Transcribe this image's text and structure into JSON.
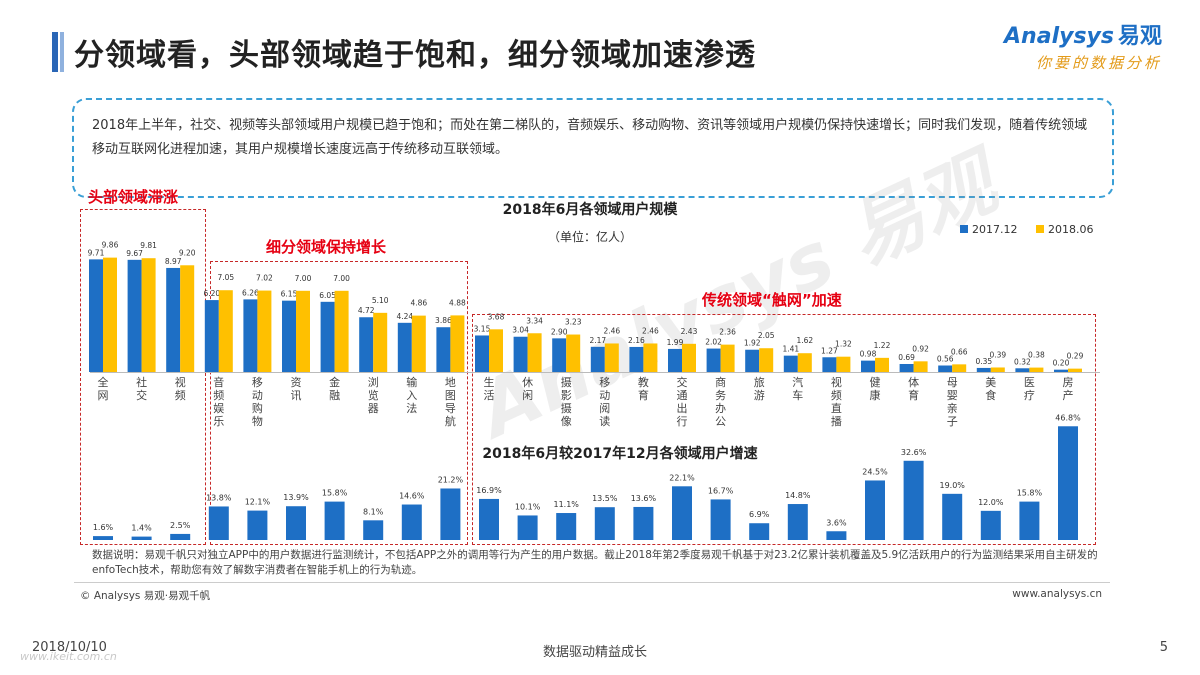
{
  "header": {
    "title": "分领域看，头部领域趋于饱和，细分领域加速渗透",
    "logo_en": "Analysys",
    "logo_cn": "易观",
    "logo_tagline": "你要的数据分析"
  },
  "summary": "2018年上半年，社交、视频等头部领域用户规模已趋于饱和；而处在第二梯队的，音频娱乐、移动购物、资讯等领域用户规模仍保持快速增长；同时我们发现，随着传统领域移动互联网化进程加速，其用户规模增长速度远高于传统移动互联领域。",
  "sections": {
    "head": "头部领域滞涨",
    "niche": "细分领域保持增长",
    "traditional": "传统领域“触网”加速"
  },
  "colors": {
    "series1": "#1e6fc5",
    "series2": "#ffc000",
    "accent": "#e60012"
  },
  "chart_data": [
    {
      "type": "bar",
      "title": "2018年6月各领域用户规模",
      "subtitle": "（单位：亿人）",
      "legend_position": "top-right",
      "categories": [
        "全网",
        "社交",
        "视频",
        "音频娱乐",
        "移动购物",
        "资讯",
        "金融",
        "浏览器",
        "输入法",
        "地图导航",
        "生活",
        "休闲",
        "摄影摄像",
        "移动阅读",
        "教育",
        "交通出行",
        "商务办公",
        "旅游",
        "汽车",
        "视频直播",
        "健康",
        "体育",
        "母婴亲子",
        "美食",
        "医疗",
        "房产"
      ],
      "series": [
        {
          "name": "2017.12",
          "values": [
            9.71,
            9.67,
            8.97,
            6.2,
            6.26,
            6.15,
            6.05,
            4.72,
            4.24,
            3.86,
            3.15,
            3.04,
            2.9,
            2.17,
            2.16,
            1.99,
            2.02,
            1.92,
            1.41,
            1.27,
            0.98,
            0.69,
            0.56,
            0.35,
            0.32,
            0.2
          ]
        },
        {
          "name": "2018.06",
          "values": [
            9.86,
            9.81,
            9.2,
            7.05,
            7.02,
            7.0,
            7.0,
            5.1,
            4.86,
            4.88,
            3.68,
            3.34,
            3.23,
            2.46,
            2.46,
            2.43,
            2.36,
            2.05,
            1.62,
            1.32,
            1.22,
            0.92,
            0.66,
            0.39,
            0.38,
            0.29
          ]
        }
      ],
      "value_labels": {
        "2017.12": [
          "9.71",
          "9.67",
          "8.97",
          "6.20",
          "6.26",
          "6.15",
          "6.05",
          "4.72",
          "4.24",
          "3.86",
          "3.15",
          "3.04",
          "2.90",
          "2.17",
          "2.16",
          "1.99",
          "2.02",
          "1.92",
          "1.41",
          "1.27",
          "0.98",
          "0.69",
          "0.56",
          "0.35",
          "0.32",
          "0.20"
        ],
        "2018.06": [
          "9.86",
          "9.81",
          "9.20",
          "7.05",
          "7.02",
          "7.00",
          "7.00",
          "5.10",
          "4.86",
          "4.88",
          "3.68",
          "3.34",
          "3.23",
          "2.46",
          "2.46",
          "2.43",
          "2.36",
          "2.05",
          "1.62",
          "1.32",
          "1.22",
          "0.92",
          "0.66",
          "0.39",
          "0.38",
          "0.29"
        ]
      },
      "ylim": [
        0,
        10
      ]
    },
    {
      "type": "bar",
      "title": "2018年6月较2017年12月各领域用户增速",
      "categories": [
        "全网",
        "社交",
        "视频",
        "音频娱乐",
        "移动购物",
        "资讯",
        "金融",
        "浏览器",
        "输入法",
        "地图导航",
        "生活",
        "休闲",
        "摄影摄像",
        "移动阅读",
        "教育",
        "交通出行",
        "商务办公",
        "旅游",
        "汽车",
        "视频直播",
        "健康",
        "体育",
        "母婴亲子",
        "美食",
        "医疗",
        "房产"
      ],
      "values": [
        1.6,
        1.4,
        2.5,
        13.8,
        12.1,
        13.9,
        15.8,
        8.1,
        14.6,
        21.2,
        16.9,
        10.1,
        11.1,
        13.5,
        13.6,
        22.1,
        16.7,
        6.9,
        14.8,
        3.6,
        24.5,
        32.6,
        19.0,
        12.0,
        15.8,
        46.8
      ],
      "value_labels": [
        "1.6%",
        "1.4%",
        "2.5%",
        "13.8%",
        "12.1%",
        "13.9%",
        "15.8%",
        "8.1%",
        "14.6%",
        "21.2%",
        "16.9%",
        "10.1%",
        "11.1%",
        "13.5%",
        "13.6%",
        "22.1%",
        "16.7%",
        "6.9%",
        "14.8%",
        "3.6%",
        "24.5%",
        "32.6%",
        "19.0%",
        "12.0%",
        "15.8%",
        "46.8%"
      ],
      "ylim": [
        0,
        50
      ]
    }
  ],
  "footer": {
    "note": "数据说明：易观千帆只对独立APP中的用户数据进行监测统计，不包括APP之外的调用等行为产生的用户数据。截止2018年第2季度易观千帆基于对23.2亿累计装机覆盖及5.9亿活跃用户的行为监测结果采用自主研发的enfoTech技术，帮助您有效了解数字消费者在智能手机上的行为轨迹。",
    "copyright": "© Analysys 易观·易观千帆",
    "website": "www.analysys.cn",
    "date": "2018/10/10",
    "slogan": "数据驱动精益成长",
    "page": "5",
    "watermark_site": "www.ikeit.com.cn"
  }
}
